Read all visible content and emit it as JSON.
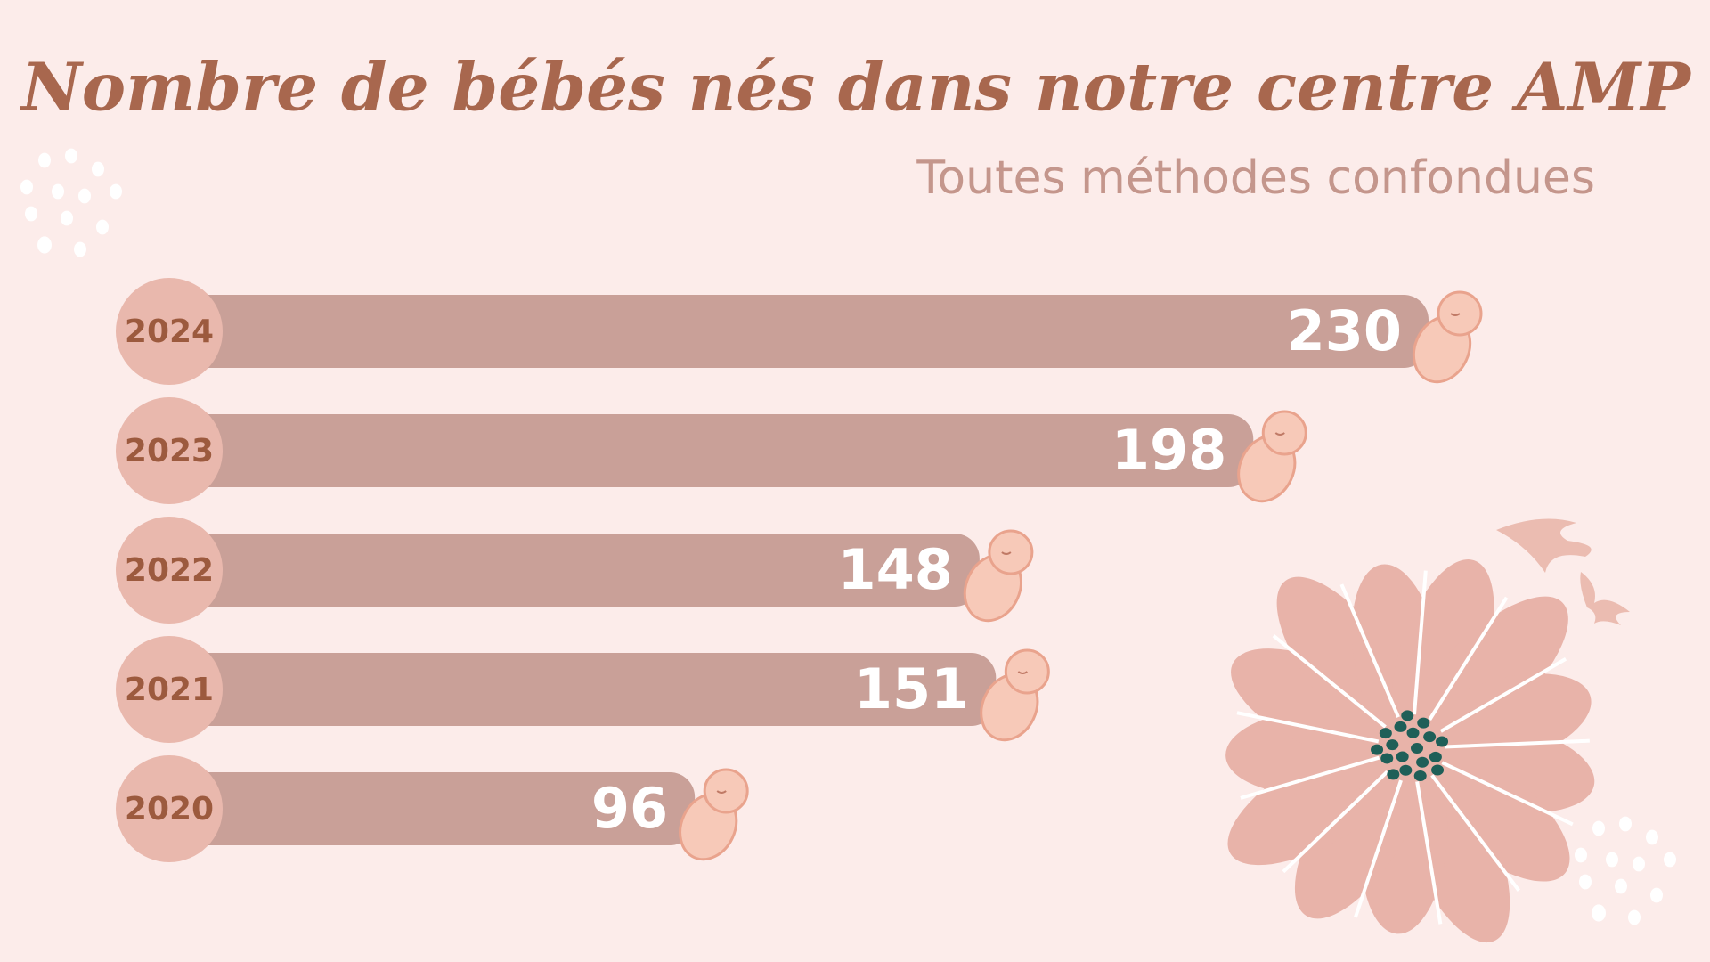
{
  "chart_data": {
    "type": "bar",
    "orientation": "horizontal",
    "title": "Nombre de bébés nés dans notre centre AMP",
    "subtitle": "Toutes méthodes confondues",
    "categories": [
      "2024",
      "2023",
      "2022",
      "2021",
      "2020"
    ],
    "values": [
      230,
      198,
      148,
      151,
      96
    ],
    "color": "#c9a098"
  }
}
